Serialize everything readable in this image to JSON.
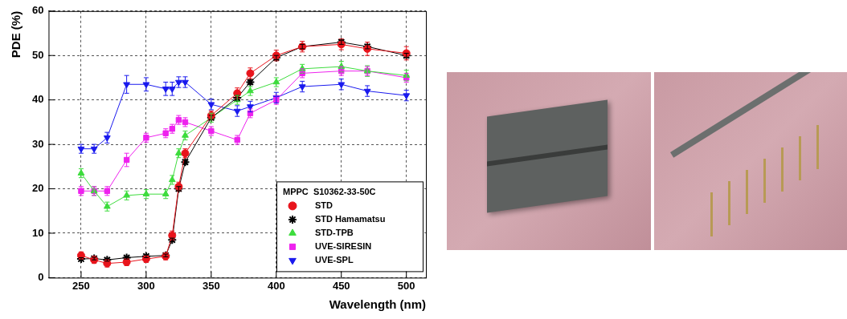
{
  "chart_data": {
    "type": "line",
    "x_label": "Wavelength (nm)",
    "y_label": "PDE (%)",
    "legend_title": "MPPC  S10362-33-50C",
    "legend": "lower right",
    "grid": true,
    "xlim": [
      225,
      515
    ],
    "xticks": [
      250,
      300,
      350,
      400,
      450,
      500
    ],
    "ylim": [
      0,
      60
    ],
    "yticks": [
      0,
      10,
      20,
      30,
      40,
      50,
      60
    ],
    "x": [
      250,
      260,
      270,
      285,
      300,
      315,
      320,
      325,
      330,
      350,
      370,
      380,
      400,
      420,
      450,
      470,
      500
    ],
    "series": [
      {
        "name": "STD",
        "color": "#e8141c",
        "marker": "circle",
        "line_style": "solid",
        "values": [
          5,
          4,
          3.2,
          3.5,
          4.2,
          4.8,
          9.5,
          20.5,
          28,
          36.5,
          41.5,
          46,
          50,
          52,
          52.5,
          51.5,
          50.5
        ],
        "errors": [
          0.8,
          0.8,
          0.8,
          0.8,
          0.8,
          0.8,
          1,
          1,
          1,
          1,
          1.2,
          1.2,
          1.2,
          1.2,
          1.2,
          1.5,
          1.5
        ]
      },
      {
        "name": "STD Hamamatsu",
        "color": "#000000",
        "marker": "star",
        "line_style": "solid",
        "values": [
          4.2,
          4.3,
          4,
          4.5,
          4.8,
          5,
          8.5,
          20,
          26,
          36,
          40.5,
          44,
          49.5,
          52,
          53,
          52,
          50
        ],
        "errors": [
          0.3,
          0.3,
          0.3,
          0.3,
          0.3,
          0.3,
          0.4,
          0.5,
          0.5,
          0.5,
          0.5,
          0.5,
          0.5,
          0.5,
          0.5,
          0.5,
          0.5
        ]
      },
      {
        "name": "STD-TPB",
        "color": "#3ddc3d",
        "marker": "triangle",
        "line_style": "solid",
        "values": [
          23.5,
          19.5,
          16,
          18.5,
          18.8,
          18.8,
          22,
          28,
          32,
          36,
          40,
          42,
          44,
          47,
          47.5,
          46.5,
          45.5
        ],
        "errors": [
          1,
          1,
          1,
          1,
          1,
          1,
          1,
          1,
          1,
          1,
          1,
          1,
          1,
          1,
          1.2,
          1.2,
          1.2
        ]
      },
      {
        "name": "UVE-SIRESIN",
        "color": "#ee22ee",
        "marker": "square",
        "line_style": "solid",
        "values": [
          19.5,
          19.5,
          19.5,
          26.5,
          31.5,
          32.5,
          33.5,
          35.5,
          35,
          33,
          31,
          37,
          40,
          46,
          46.5,
          46.5,
          45
        ],
        "errors": [
          1,
          1,
          1,
          1.5,
          1,
          1,
          1,
          1,
          1,
          1,
          1,
          1,
          1,
          1,
          1,
          1,
          1
        ]
      },
      {
        "name": "UVE-SPL",
        "color": "#1a1aee",
        "marker": "triangle_down",
        "line_style": "solid",
        "values": [
          29,
          29,
          31.5,
          43.5,
          43.5,
          42.5,
          42.5,
          44,
          44,
          39,
          37.5,
          38.5,
          40.5,
          43,
          43.5,
          42,
          41
        ],
        "errors": [
          1,
          1,
          1.2,
          2,
          1.5,
          1.5,
          1.5,
          1.2,
          1.2,
          1.2,
          1.2,
          1.2,
          1.2,
          1.2,
          1.2,
          1.2,
          1.2
        ]
      }
    ]
  }
}
